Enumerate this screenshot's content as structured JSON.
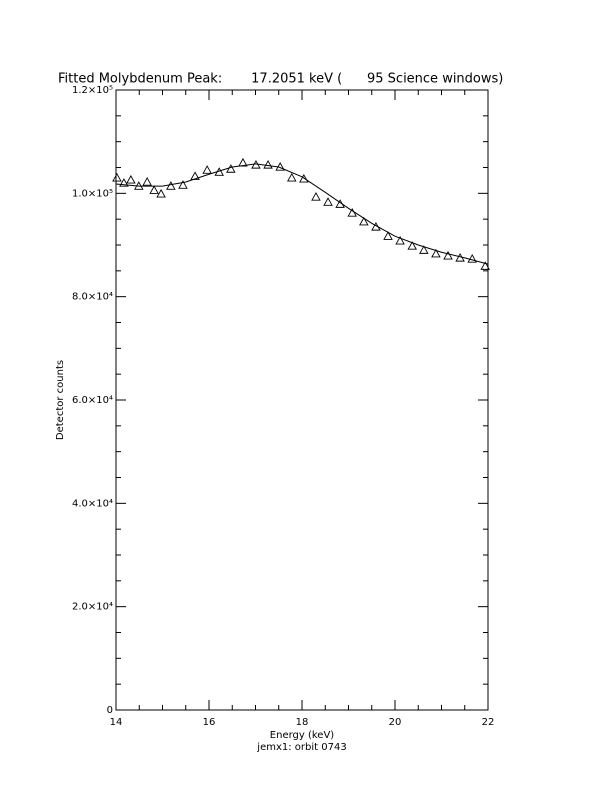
{
  "chart_data": {
    "type": "scatter",
    "title": "Fitted Molybdenum Peak:       17.2051 keV (      95 Science windows)",
    "x_label": "Energy (keV)",
    "y_label": "Detector counts",
    "footer": "jemx1: orbit 0743",
    "xlim": [
      14,
      22
    ],
    "xticks": [
      14,
      16,
      18,
      20,
      22
    ],
    "ylim": [
      0,
      120000
    ],
    "yticks": [
      0,
      {
        "value": 20000,
        "label": "2.0×10⁴"
      },
      {
        "value": 40000,
        "label": "4.0×10⁴"
      },
      {
        "value": 60000,
        "label": "6.0×10⁴"
      },
      {
        "value": 80000,
        "label": "8.0×10⁴"
      },
      {
        "value": 100000,
        "label": "1.0×10⁵"
      },
      {
        "value": 120000,
        "label": "1.2×10⁵"
      }
    ],
    "minor_ticks": 4,
    "series": [
      {
        "type": "scatter",
        "color": "#000000",
        "x": [
          14.02,
          14.17,
          14.32,
          14.49,
          14.67,
          14.82,
          14.97,
          15.18,
          15.44,
          15.7,
          15.96,
          16.22,
          16.47,
          16.73,
          17.01,
          17.27,
          17.53,
          17.78,
          18.04,
          18.3,
          18.56,
          18.82,
          19.08,
          19.33,
          19.59,
          19.85,
          20.11,
          20.37,
          20.62,
          20.88,
          21.14,
          21.4,
          21.66,
          21.94
        ],
        "values": [
          103000,
          102000,
          102600,
          101400,
          102200,
          100600,
          99900,
          101400,
          101600,
          103300,
          104500,
          104100,
          104700,
          105900,
          105500,
          105500,
          105100,
          103000,
          102800,
          99300,
          98300,
          97900,
          96200,
          94500,
          93500,
          91700,
          90800,
          89800,
          89000,
          88300,
          87900,
          87500,
          87300,
          85900
        ]
      },
      {
        "type": "line",
        "color": "#000000",
        "x": [
          14,
          14.5,
          15,
          15.5,
          16,
          16.5,
          17,
          17.5,
          18,
          18.5,
          19,
          19.5,
          20,
          20.5,
          21,
          21.5,
          22
        ],
        "values": [
          101800,
          101400,
          101400,
          102200,
          103700,
          105100,
          105700,
          105100,
          103200,
          100200,
          97100,
          94200,
          91700,
          90000,
          88600,
          87500,
          86300
        ]
      }
    ]
  }
}
